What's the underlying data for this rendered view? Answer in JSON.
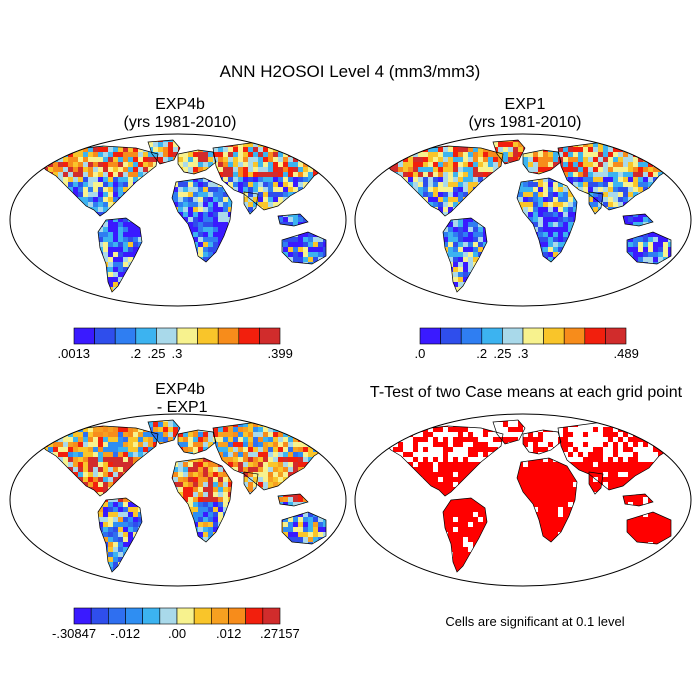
{
  "figure_title": "ANN H2OSOI Level 4 (mm3/mm3)",
  "panels": [
    {
      "id": "exp4b",
      "title_line1": "EXP4b",
      "title_line2": "(yrs 1981-2010)"
    },
    {
      "id": "exp1",
      "title_line1": "EXP1",
      "title_line2": "(yrs 1981-2010)"
    },
    {
      "id": "diff",
      "title_line1": "EXP4b",
      "title_line2": " - EXP1"
    },
    {
      "id": "ttest",
      "title_line1": "T-Test of two Case means at each grid point",
      "title_line2": ""
    }
  ],
  "colorbars": {
    "exp4b": {
      "colors": [
        "#3a1aff",
        "#2f4eec",
        "#2f7ef2",
        "#3cb3f0",
        "#a9d9ea",
        "#f7f28e",
        "#f9c52a",
        "#f78c1b",
        "#f21f0d",
        "#d12c2c"
      ],
      "tick_labels": [
        ".0013",
        ".2",
        ".25",
        ".3",
        ".399"
      ],
      "tick_index": [
        0,
        3,
        4,
        5,
        10
      ]
    },
    "exp1": {
      "colors": [
        "#3a1aff",
        "#2f4eec",
        "#2f7ef2",
        "#3cb3f0",
        "#a9d9ea",
        "#f7f28e",
        "#f9c52a",
        "#f78c1b",
        "#f21f0d",
        "#d12c2c"
      ],
      "tick_labels": [
        ".0",
        ".2",
        ".25",
        ".3",
        ".489"
      ],
      "tick_index": [
        0,
        3,
        4,
        5,
        10
      ]
    },
    "diff": {
      "colors": [
        "#3a1aff",
        "#2f4eec",
        "#2f6ff0",
        "#2f8ef2",
        "#3cb3f0",
        "#a9d9ea",
        "#f7f28e",
        "#f9c52a",
        "#f7a020",
        "#f78c1b",
        "#f21f0d",
        "#d12c2c"
      ],
      "tick_labels": [
        "-.30847",
        "-.012",
        ".00",
        ".012",
        ".27157"
      ],
      "tick_index": [
        0,
        3,
        6,
        9,
        12
      ]
    }
  },
  "significance_note": "Cells are significant at 0.1 level",
  "chart_data": [
    {
      "type": "heatmap",
      "title": "EXP4b (yrs 1981-2010)",
      "variable": "H2OSOI Level 4",
      "units": "mm3/mm3",
      "period": "1981-2010",
      "projection": "Robinson",
      "levels": [
        0.0013,
        0.2,
        0.25,
        0.3,
        0.399
      ]
    },
    {
      "type": "heatmap",
      "title": "EXP1 (yrs 1981-2010)",
      "variable": "H2OSOI Level 4",
      "units": "mm3/mm3",
      "period": "1981-2010",
      "projection": "Robinson",
      "levels": [
        0.0,
        0.2,
        0.25,
        0.3,
        0.489
      ]
    },
    {
      "type": "heatmap",
      "title": "EXP4b - EXP1",
      "variable": "H2OSOI Level 4 difference",
      "units": "mm3/mm3",
      "projection": "Robinson",
      "levels": [
        -0.30847,
        -0.012,
        0.0,
        0.012,
        0.27157
      ]
    },
    {
      "type": "heatmap",
      "title": "T-Test of two Case means at each grid point",
      "projection": "Robinson",
      "significance_level": 0.1
    }
  ]
}
